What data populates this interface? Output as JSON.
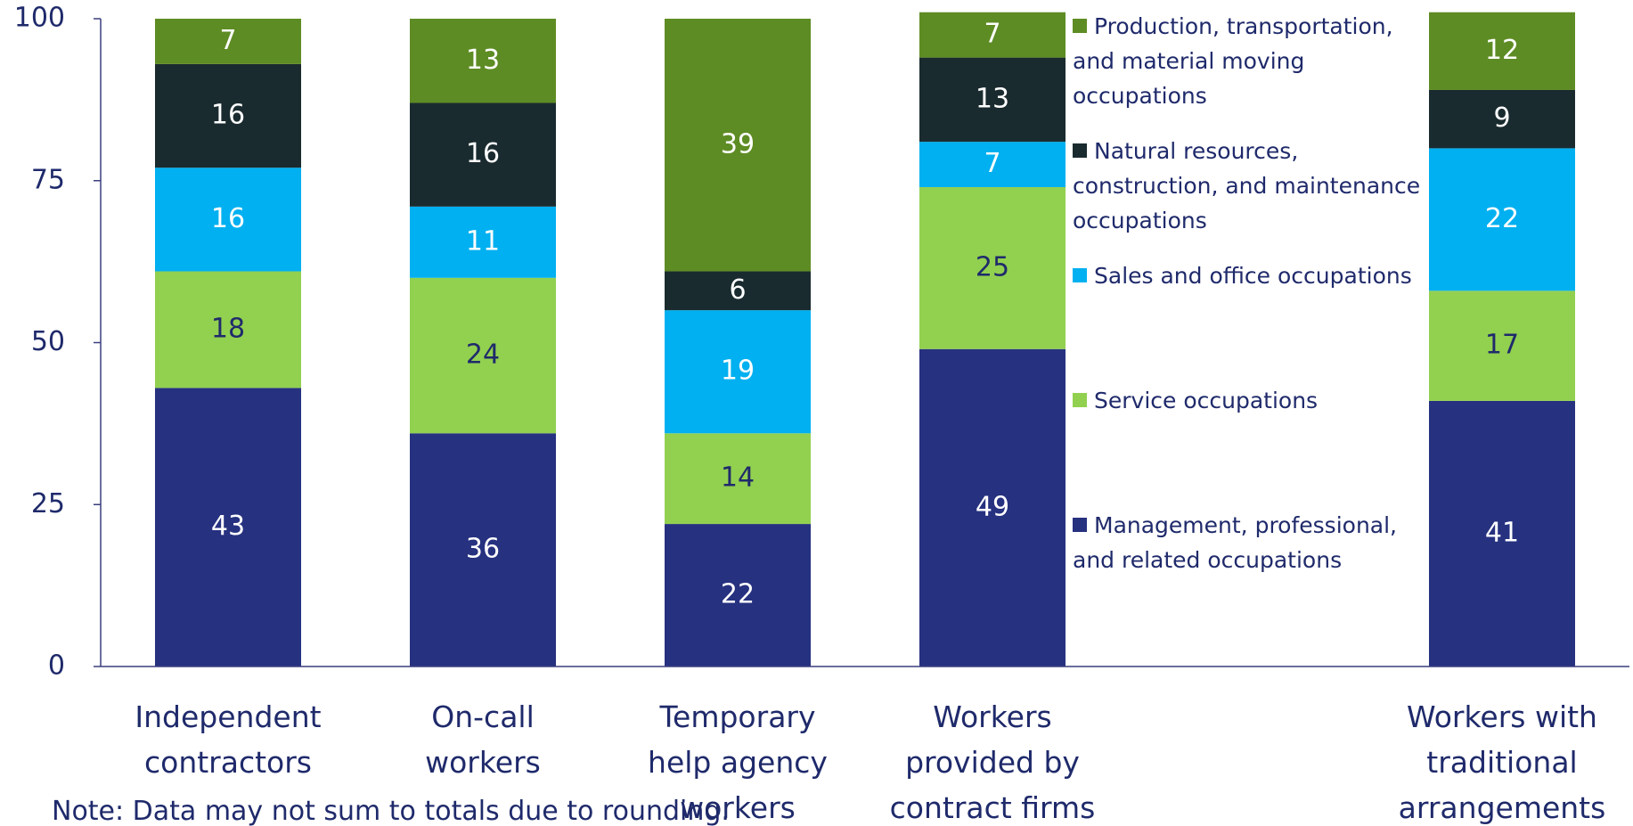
{
  "chart_data": {
    "type": "stacked_bar",
    "categories": [
      "Independent contractors",
      "On-call workers",
      "Temporary help agency workers",
      "Workers provided by contract firms",
      null,
      "Workers with traditional arrangements"
    ],
    "series": [
      {
        "name": "Management, professional, and related occupations",
        "color": "#263180",
        "label_color": "#ffffff",
        "values": [
          43,
          36,
          22,
          49,
          null,
          41
        ]
      },
      {
        "name": "Service occupations",
        "color": "#92d050",
        "label_color": "#1f2a6b",
        "values": [
          18,
          24,
          14,
          25,
          null,
          17
        ]
      },
      {
        "name": "Sales and office occupations",
        "color": "#00b0f0",
        "label_color": "#ffffff",
        "values": [
          16,
          11,
          19,
          7,
          null,
          22
        ]
      },
      {
        "name": "Natural resources, construction, and maintenance occupations",
        "color": "#1a2b2f",
        "label_color": "#ffffff",
        "values": [
          16,
          16,
          6,
          13,
          null,
          9
        ]
      },
      {
        "name": "Production, transportation, and material moving occupations",
        "color": "#5e8c24",
        "label_color": "#ffffff",
        "values": [
          7,
          13,
          39,
          7,
          null,
          12
        ]
      }
    ],
    "ylim": [
      0,
      100
    ],
    "yticks": [
      0,
      25,
      50,
      75,
      100
    ],
    "grid": false,
    "note": "Note: Data may not sum to totals due to rounding."
  }
}
